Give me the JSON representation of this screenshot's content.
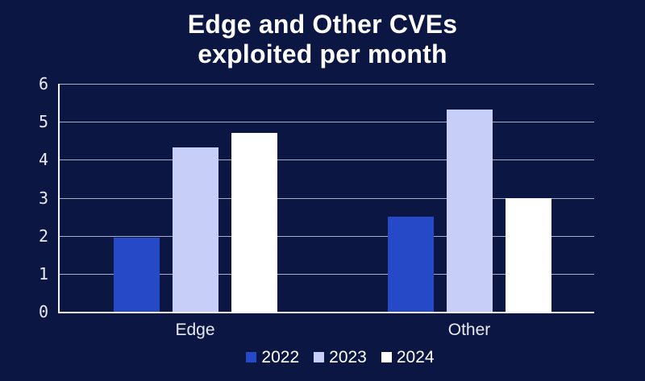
{
  "title": {
    "line1": "Edge and Other CVEs",
    "line2": "exploited per month"
  },
  "chart_data": {
    "type": "bar",
    "categories": [
      "Edge",
      "Other"
    ],
    "series": [
      {
        "name": "2022",
        "color": "#2649c8",
        "values": [
          1.95,
          2.5
        ]
      },
      {
        "name": "2023",
        "color": "#c7cff8",
        "values": [
          4.33,
          5.33
        ]
      },
      {
        "name": "2024",
        "color": "#ffffff",
        "values": [
          4.7,
          3.0
        ]
      }
    ],
    "title": "Edge and Other CVEs exploited per month",
    "xlabel": "",
    "ylabel": "",
    "ylim": [
      0,
      6
    ],
    "yticks": [
      0,
      1,
      2,
      3,
      4,
      5,
      6
    ],
    "grid": true,
    "legend_position": "bottom"
  },
  "colors": {
    "background": "#0b1642",
    "gridline": "#a6aecb",
    "axis": "#f2f4fa",
    "title_text": "#ffffff",
    "tick_text": "#e9ecf5"
  }
}
